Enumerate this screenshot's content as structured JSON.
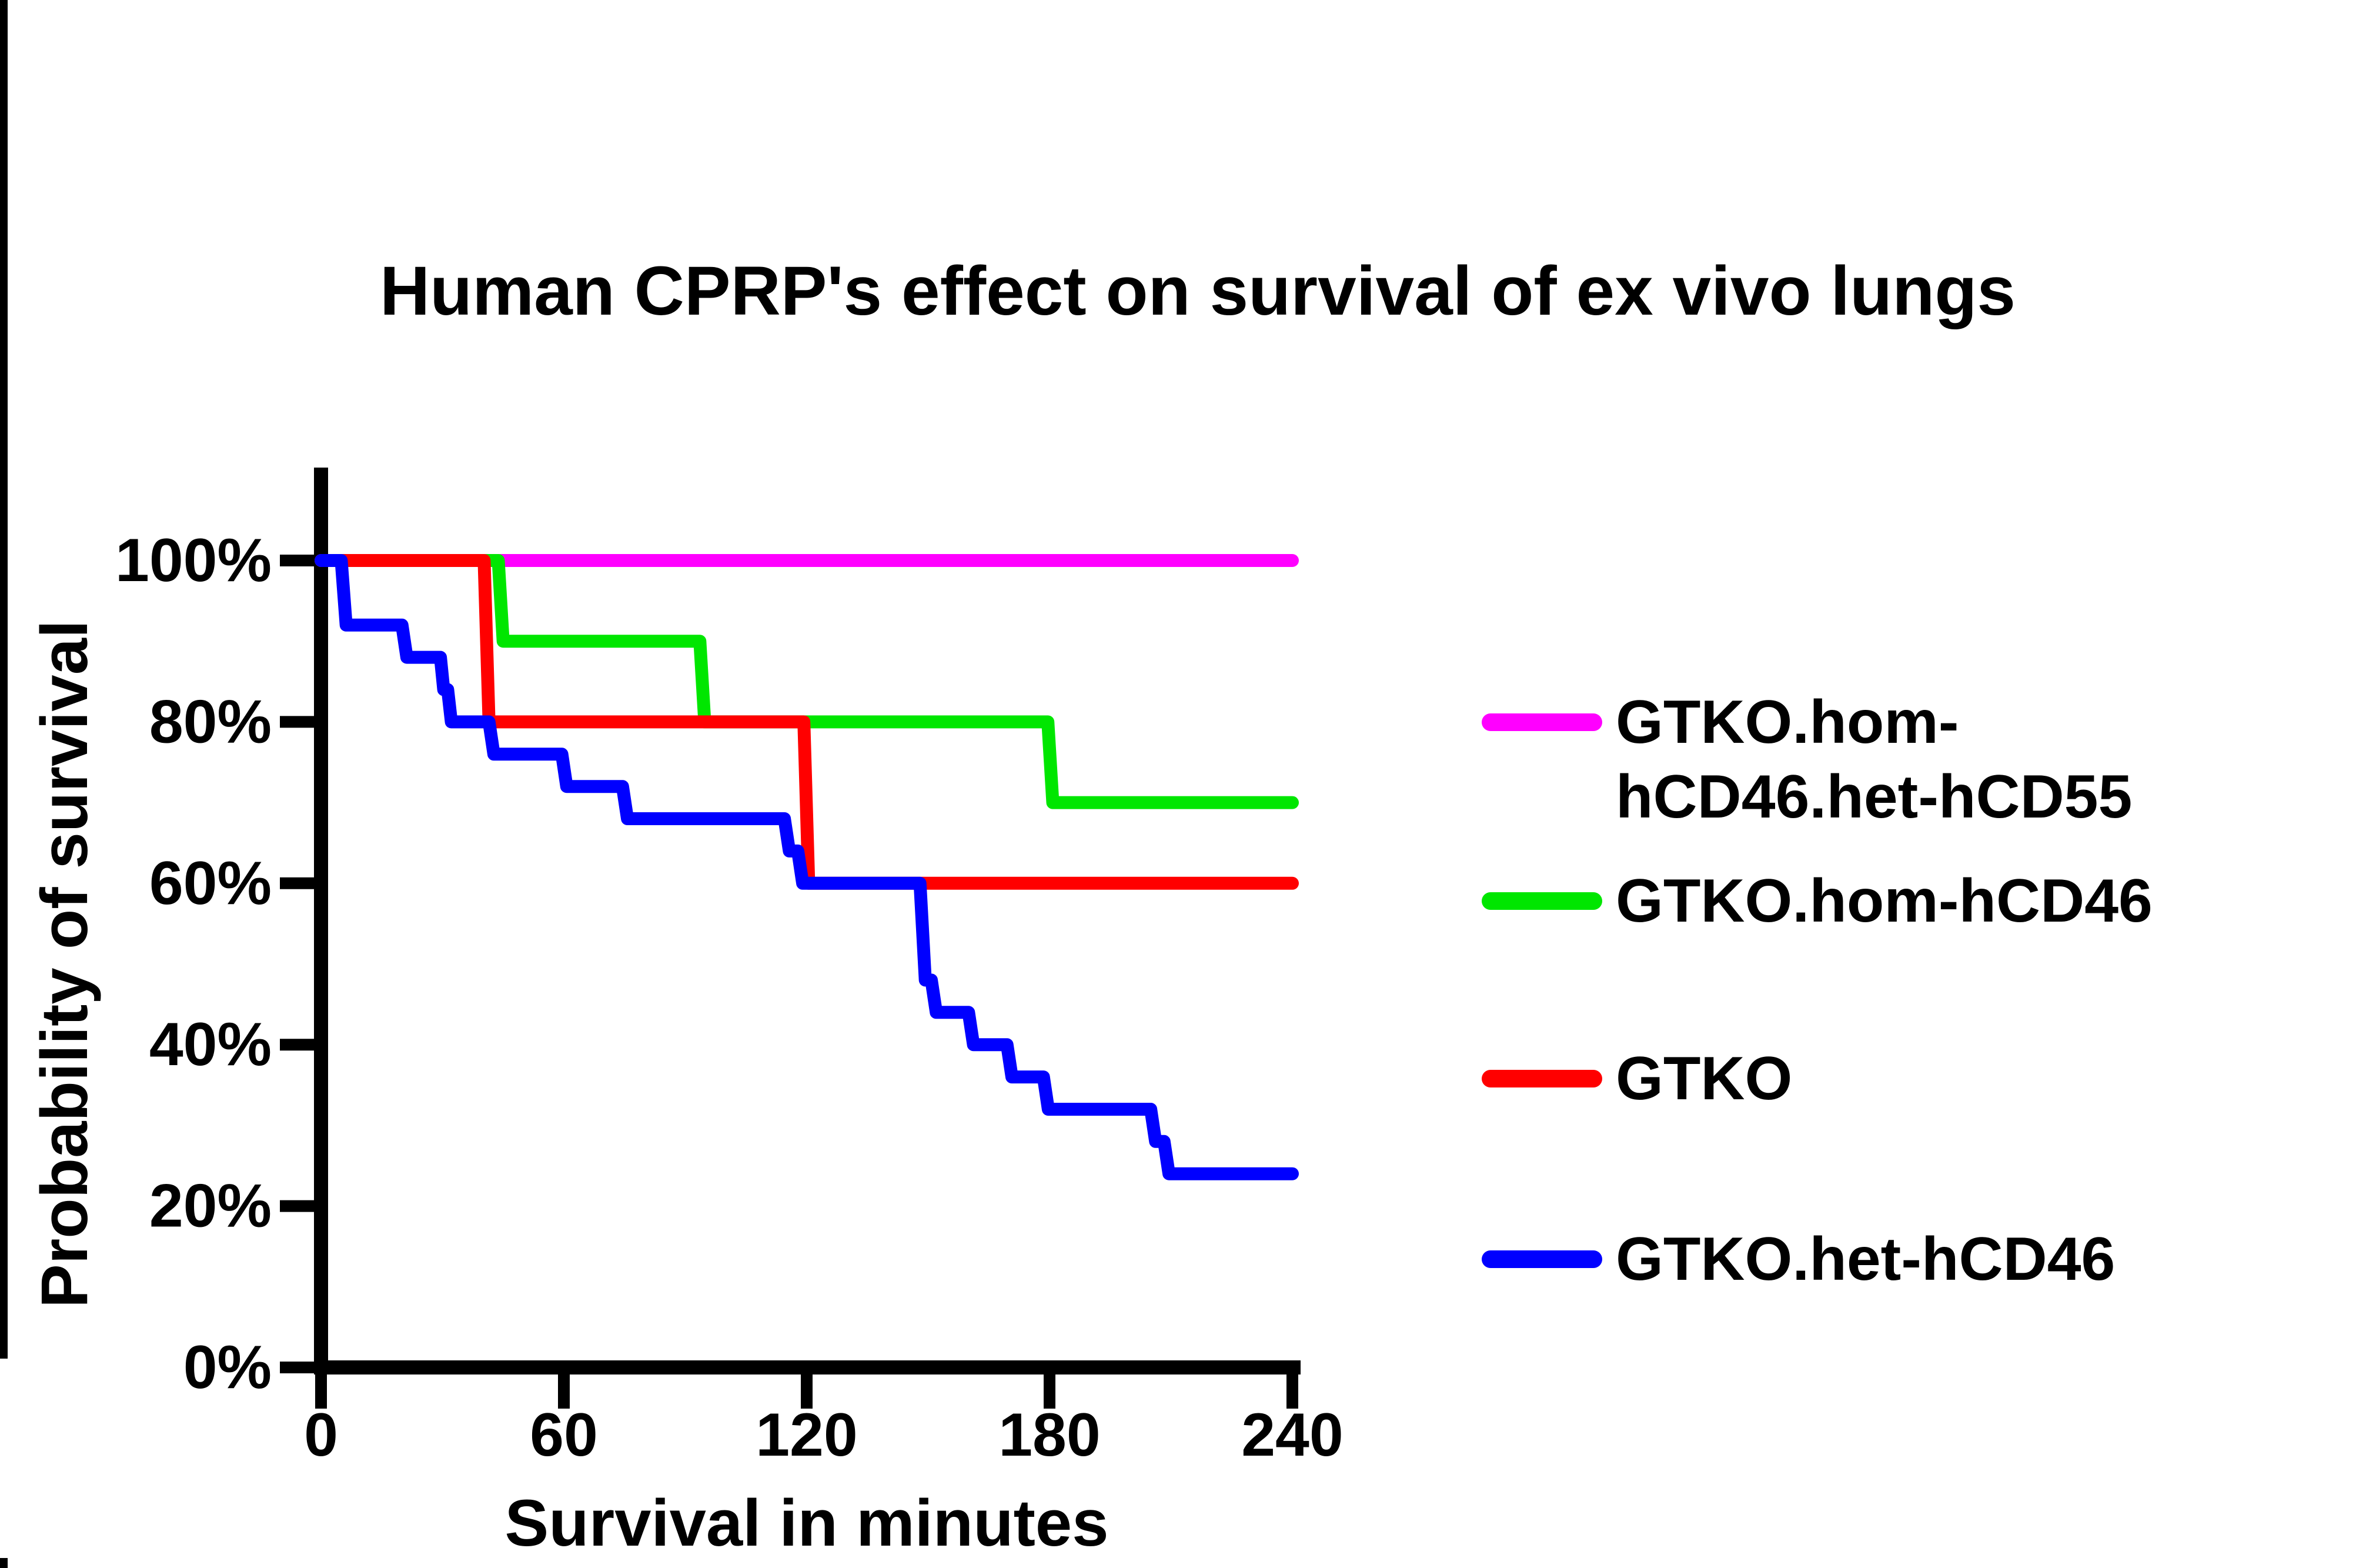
{
  "page": {
    "background_color": "#FFFFFF",
    "text_color": "#000000"
  },
  "chart_data": {
    "type": "line",
    "subtype": "kaplan-meier-step-survival",
    "title": "Human CPRP's effect on survival of ex vivo lungs",
    "xlabel": "Survival in minutes",
    "ylabel": "Probability of survival",
    "xlim": [
      0,
      240
    ],
    "ylim": [
      0,
      100
    ],
    "grid": false,
    "legend_position": "right",
    "x_ticks": [
      {
        "value": 0,
        "label": "0"
      },
      {
        "value": 60,
        "label": "60"
      },
      {
        "value": 120,
        "label": "120"
      },
      {
        "value": 180,
        "label": "180"
      },
      {
        "value": 240,
        "label": "240"
      }
    ],
    "y_ticks": [
      {
        "value": 100,
        "label": "100%"
      },
      {
        "value": 80,
        "label": "80%"
      },
      {
        "value": 60,
        "label": "60%"
      },
      {
        "value": 40,
        "label": "40%"
      },
      {
        "value": 20,
        "label": "20%"
      },
      {
        "value": 0,
        "label": "0%"
      }
    ],
    "series": [
      {
        "name": "GTKO.hom-hCD46.het-hCD55",
        "color": "#FF00FF",
        "final_survival_pct": 100,
        "points": [
          [
            0,
            100
          ],
          [
            240,
            100
          ]
        ]
      },
      {
        "name": "GTKO.hom-hCD46",
        "color": "#00E600",
        "final_survival_pct": 70,
        "points": [
          [
            0,
            100
          ],
          [
            43.8,
            100
          ],
          [
            45,
            90
          ],
          [
            93.6,
            90
          ],
          [
            94.8,
            80
          ],
          [
            179.6,
            80
          ],
          [
            180.8,
            70
          ],
          [
            240,
            70
          ]
        ]
      },
      {
        "name": "GTKO",
        "color": "#FF0000",
        "final_survival_pct": 60,
        "points": [
          [
            0,
            100
          ],
          [
            40.3,
            100
          ],
          [
            41.5,
            80
          ],
          [
            119.3,
            80
          ],
          [
            120.5,
            60
          ],
          [
            240,
            60
          ]
        ]
      },
      {
        "name": "GTKO.het-hCD46",
        "color": "#0000FF",
        "final_survival_pct": 24,
        "points": [
          [
            0,
            100
          ],
          [
            5,
            100
          ],
          [
            6.2,
            92
          ],
          [
            20,
            92
          ],
          [
            21.2,
            88
          ],
          [
            29.5,
            88
          ],
          [
            30.3,
            84
          ],
          [
            31.3,
            84
          ],
          [
            32.2,
            80
          ],
          [
            41.5,
            80
          ],
          [
            42.7,
            76
          ],
          [
            59.5,
            76
          ],
          [
            60.7,
            72
          ],
          [
            74.5,
            72
          ],
          [
            75.7,
            68
          ],
          [
            114.5,
            68
          ],
          [
            115.7,
            64
          ],
          [
            117.8,
            64
          ],
          [
            119,
            60
          ],
          [
            148,
            60
          ],
          [
            149.3,
            48
          ],
          [
            150.8,
            48
          ],
          [
            152,
            44
          ],
          [
            160,
            44
          ],
          [
            161.2,
            40
          ],
          [
            169.5,
            40
          ],
          [
            170.7,
            36
          ],
          [
            178.5,
            36
          ],
          [
            179.7,
            32
          ],
          [
            205,
            32
          ],
          [
            206.2,
            28
          ],
          [
            208.3,
            28
          ],
          [
            209.5,
            24
          ],
          [
            240,
            24
          ]
        ]
      }
    ]
  },
  "legend": {
    "entries": [
      {
        "label_lines": [
          "GTKO.hom-",
          "hCD46.het-hCD55"
        ],
        "color": "#FF00FF"
      },
      {
        "label_lines": [
          "GTKO.hom-hCD46"
        ],
        "color": "#00E600"
      },
      {
        "label_lines": [
          "GTKO"
        ],
        "color": "#FF0000"
      },
      {
        "label_lines": [
          "GTKO.het-hCD46"
        ],
        "color": "#0000FF"
      }
    ]
  }
}
